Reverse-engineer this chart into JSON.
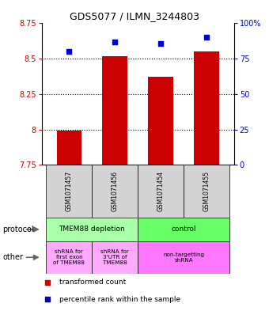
{
  "title": "GDS5077 / ILMN_3244803",
  "samples": [
    "GSM1071457",
    "GSM1071456",
    "GSM1071454",
    "GSM1071455"
  ],
  "bar_values": [
    7.99,
    8.52,
    8.37,
    8.55
  ],
  "bar_color": "#cc0000",
  "dot_values": [
    80,
    87,
    86,
    90
  ],
  "dot_color": "#0000cc",
  "yleft_min": 7.75,
  "yleft_max": 8.75,
  "yright_min": 0,
  "yright_max": 100,
  "yticks_left": [
    7.75,
    8.0,
    8.25,
    8.5,
    8.75
  ],
  "yticks_right": [
    0,
    25,
    50,
    75,
    100
  ],
  "ytick_labels_left": [
    "7.75",
    "8",
    "8.25",
    "8.5",
    "8.75"
  ],
  "ytick_labels_right": [
    "0",
    "25",
    "50",
    "75",
    "100%"
  ],
  "protocol_label": "protocol",
  "other_label": "other",
  "protocol_groups": [
    {
      "label": "TMEM88 depletion",
      "color": "#aaffaa",
      "cols": [
        0,
        1
      ]
    },
    {
      "label": "control",
      "color": "#66ff66",
      "cols": [
        2,
        3
      ]
    }
  ],
  "other_groups": [
    {
      "label": "shRNA for\nfirst exon\nof TMEM88",
      "color": "#ffaaff",
      "cols": [
        0
      ]
    },
    {
      "label": "shRNA for\n3'UTR of\nTMEM88",
      "color": "#ffaaff",
      "cols": [
        1
      ]
    },
    {
      "label": "non-targetting\nshRNA",
      "color": "#ff77ff",
      "cols": [
        2,
        3
      ]
    }
  ],
  "legend_bar_label": "transformed count",
  "legend_dot_label": "percentile rank within the sample"
}
